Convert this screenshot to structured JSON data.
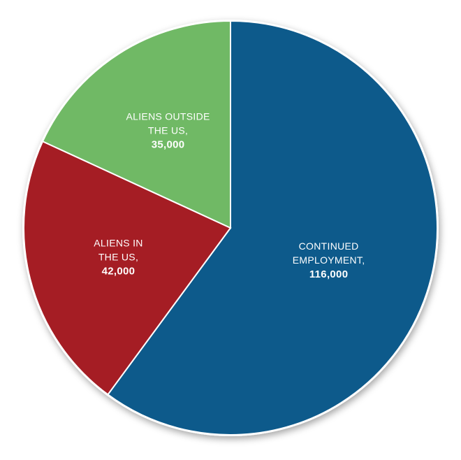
{
  "chart_data": {
    "type": "pie",
    "slices": [
      {
        "label_lines": [
          "CONTINUED",
          "EMPLOYMENT,"
        ],
        "value_text": "116,000",
        "value": 116000,
        "color": "#0d5a8b"
      },
      {
        "label_lines": [
          "ALIENS IN",
          "THE US,"
        ],
        "value_text": "42,000",
        "value": 42000,
        "color": "#a51d24"
      },
      {
        "label_lines": [
          "ALIENS OUTSIDE",
          "THE US,"
        ],
        "value_text": "35,000",
        "value": 35000,
        "color": "#70b965"
      }
    ],
    "start_angle_deg": 0,
    "direction": "clockwise",
    "legend": "none"
  }
}
